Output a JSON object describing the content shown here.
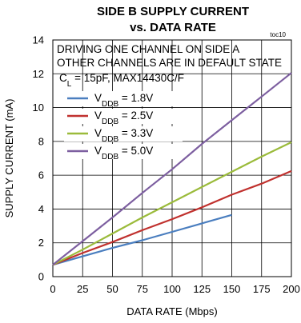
{
  "chart_data": {
    "type": "line",
    "title": "SIDE B SUPPLY CURRENT",
    "subtitle": "vs. DATA RATE",
    "code": "toc10",
    "xlabel": "DATA RATE (Mbps)",
    "ylabel": "SUPPLY CURRENT (mA)",
    "xlim": [
      0,
      200
    ],
    "ylim": [
      0,
      14
    ],
    "xticks": [
      0,
      25,
      50,
      75,
      100,
      125,
      150,
      175,
      200
    ],
    "yticks": [
      0,
      2,
      4,
      6,
      8,
      10,
      12,
      14
    ],
    "grid": true,
    "annotations": [
      "DRIVING ONE CHANNEL ON SIDE A",
      "OTHER CHANNELS ARE IN DEFAULT STATE",
      "C_L = 15pF, MAX14430C/F"
    ],
    "legend_position": "top-left",
    "series": [
      {
        "name": "V_DDB = 1.8V",
        "color": "#4a7ebf",
        "x": [
          0,
          25,
          50,
          75,
          100,
          125,
          150
        ],
        "y": [
          0.7,
          1.2,
          1.7,
          2.15,
          2.65,
          3.15,
          3.65
        ]
      },
      {
        "name": "V_DDB = 2.5V",
        "color": "#c0312e",
        "x": [
          0,
          25,
          50,
          75,
          100,
          125,
          150,
          175,
          200
        ],
        "y": [
          0.7,
          1.4,
          2.05,
          2.75,
          3.4,
          4.1,
          4.85,
          5.5,
          6.25
        ]
      },
      {
        "name": "V_DDB = 3.3V",
        "color": "#9bbb3b",
        "x": [
          0,
          25,
          50,
          75,
          100,
          125,
          150,
          175,
          200
        ],
        "y": [
          0.7,
          1.6,
          2.55,
          3.5,
          4.4,
          5.3,
          6.2,
          7.1,
          7.95
        ]
      },
      {
        "name": "V_DDB = 5.0V",
        "color": "#7d5fa0",
        "x": [
          0,
          25,
          50,
          75,
          100,
          125,
          150,
          175,
          200
        ],
        "y": [
          0.7,
          2.1,
          3.5,
          4.95,
          6.35,
          7.85,
          9.25,
          10.65,
          12.05
        ]
      }
    ]
  }
}
